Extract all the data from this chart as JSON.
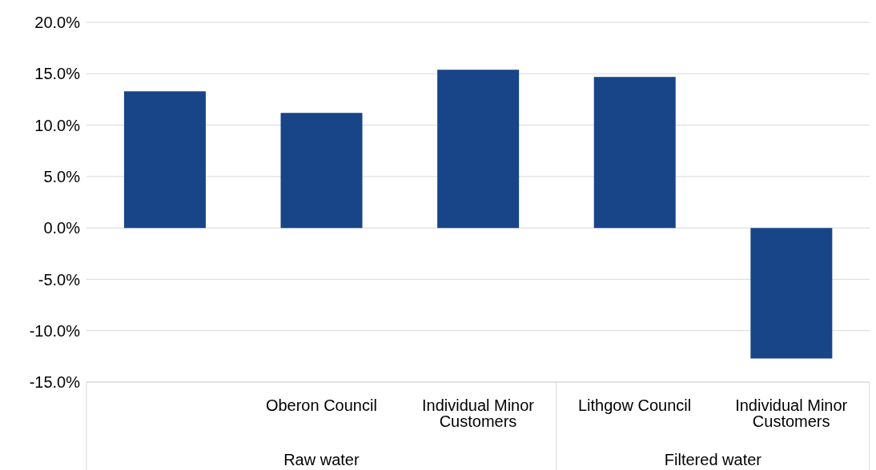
{
  "chart_data": {
    "type": "bar",
    "categories": [
      null,
      "Oberon Council",
      "Individual Minor Customers",
      "Lithgow Council",
      "Individual Minor Customers"
    ],
    "values": [
      13.3,
      11.2,
      15.4,
      14.7,
      -12.7
    ],
    "color": "#174587",
    "ylim": [
      -15,
      20
    ],
    "yticks": [
      {
        "value": -15,
        "label": "-15.0%"
      },
      {
        "value": -10,
        "label": "-10.0%"
      },
      {
        "value": -5,
        "label": "-5.0%"
      },
      {
        "value": 0,
        "label": "0.0%"
      },
      {
        "value": 5,
        "label": "5.0%"
      },
      {
        "value": 10,
        "label": "10.0%"
      },
      {
        "value": 15,
        "label": "15.0%"
      },
      {
        "value": 20,
        "label": "20.0%"
      }
    ],
    "grid": "y",
    "annotations": [
      "Raw water",
      "Filtered water"
    ]
  }
}
